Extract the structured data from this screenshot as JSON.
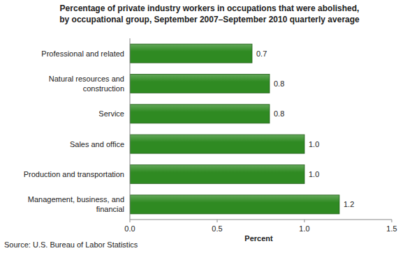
{
  "chart_data": {
    "type": "bar",
    "orientation": "horizontal",
    "title": "Percentage of private industry workers in occupations that were abolished,\nby occupational group, September 2007–September 2010 quarterly average",
    "categories": [
      "Professional and related",
      "Natural resources and\nconstruction",
      "Service",
      "Sales and office",
      "Production and transportation",
      "Management, business, and\nfinancial"
    ],
    "values": [
      0.7,
      0.8,
      0.8,
      1,
      1,
      1.2
    ],
    "value_labels": [
      "0.7",
      "0.8",
      "0.8",
      "1.0",
      "1.0",
      "1.2"
    ],
    "data_labels": true,
    "color": "#2f8a22",
    "xlim": [
      0,
      1.5
    ],
    "xticks": [
      {
        "value": 0,
        "label": "0.0"
      },
      0.5,
      {
        "value": 1,
        "label": "1.0"
      },
      1.5
    ],
    "x_label": "Percent",
    "grid": false,
    "source": "Source: U.S. Bureau of Labor Statistics"
  }
}
